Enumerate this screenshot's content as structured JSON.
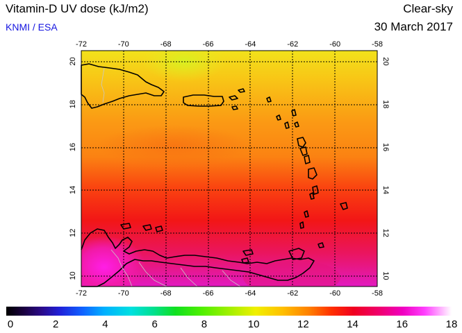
{
  "header": {
    "title": "Vitamin-D UV dose (kJ/m2)",
    "credit": "KNMI / ESA",
    "conditions": "Clear-sky",
    "date": "30 March 2017"
  },
  "map": {
    "longitude_ticks": [
      "-72",
      "-70",
      "-68",
      "-66",
      "-64",
      "-62",
      "-60",
      "-58"
    ],
    "latitude_ticks": [
      "20",
      "18",
      "16",
      "14",
      "12",
      "10"
    ],
    "lon_range": [
      -72,
      -58
    ],
    "lat_range": [
      9.5,
      20.5
    ],
    "gridlines": true
  },
  "colorbar": {
    "min": 0,
    "max": 18,
    "tick_labels": [
      "0",
      "2",
      "4",
      "6",
      "8",
      "10",
      "12",
      "14",
      "16",
      "18"
    ]
  },
  "colors": {
    "title_text": "#000000",
    "credit_text": "#1515e0",
    "coastline": "#000000",
    "border": "#c0c0c0"
  }
}
